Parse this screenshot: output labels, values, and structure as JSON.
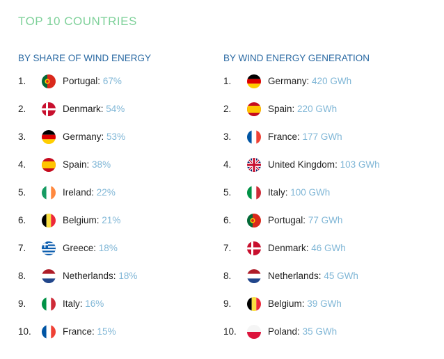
{
  "title": "TOP 10 COUNTRIES",
  "left": {
    "heading": "BY SHARE OF WIND ENERGY",
    "items": [
      {
        "rank": "1.",
        "country": "Portugal",
        "value": "67%",
        "flag": "portugal-flag-icon"
      },
      {
        "rank": "2.",
        "country": "Denmark",
        "value": "54%",
        "flag": "denmark-flag-icon"
      },
      {
        "rank": "3.",
        "country": "Germany",
        "value": "53%",
        "flag": "germany-flag-icon"
      },
      {
        "rank": "4.",
        "country": "Spain",
        "value": "38%",
        "flag": "spain-flag-icon"
      },
      {
        "rank": "5.",
        "country": "Ireland",
        "value": "22%",
        "flag": "ireland-flag-icon"
      },
      {
        "rank": "6.",
        "country": "Belgium",
        "value": "21%",
        "flag": "belgium-flag-icon"
      },
      {
        "rank": "7.",
        "country": "Greece",
        "value": "18%",
        "flag": "greece-flag-icon"
      },
      {
        "rank": "8.",
        "country": "Netherlands",
        "value": "18%",
        "flag": "netherlands-flag-icon"
      },
      {
        "rank": "9.",
        "country": "Italy",
        "value": "16%",
        "flag": "italy-flag-icon"
      },
      {
        "rank": "10.",
        "country": "France",
        "value": "15%",
        "flag": "france-flag-icon"
      }
    ]
  },
  "right": {
    "heading": "BY WIND ENERGY GENERATION",
    "items": [
      {
        "rank": "1.",
        "country": "Germany",
        "value": "420 GWh",
        "flag": "germany-flag-icon"
      },
      {
        "rank": "2.",
        "country": "Spain",
        "value": "220 GWh",
        "flag": "spain-flag-icon"
      },
      {
        "rank": "3.",
        "country": "France",
        "value": "177 GWh",
        "flag": "france-flag-icon"
      },
      {
        "rank": "4.",
        "country": "United Kingdom",
        "value": "103 GWh",
        "flag": "united-kingdom-flag-icon"
      },
      {
        "rank": "5.",
        "country": "Italy",
        "value": "100 GWh",
        "flag": "italy-flag-icon"
      },
      {
        "rank": "6.",
        "country": "Portugal",
        "value": "77 GWh",
        "flag": "portugal-flag-icon"
      },
      {
        "rank": "7.",
        "country": "Denmark",
        "value": "46 GWh",
        "flag": "denmark-flag-icon"
      },
      {
        "rank": "8.",
        "country": "Netherlands",
        "value": "45 GWh",
        "flag": "netherlands-flag-icon"
      },
      {
        "rank": "9.",
        "country": "Belgium",
        "value": "39 GWh",
        "flag": "belgium-flag-icon"
      },
      {
        "rank": "10.",
        "country": "Poland",
        "value": "35 GWh",
        "flag": "poland-flag-icon"
      }
    ]
  },
  "colors": {
    "title": "#7fd19a",
    "heading": "#2b6aa3",
    "text": "#222222",
    "value": "#7fb6d6"
  }
}
